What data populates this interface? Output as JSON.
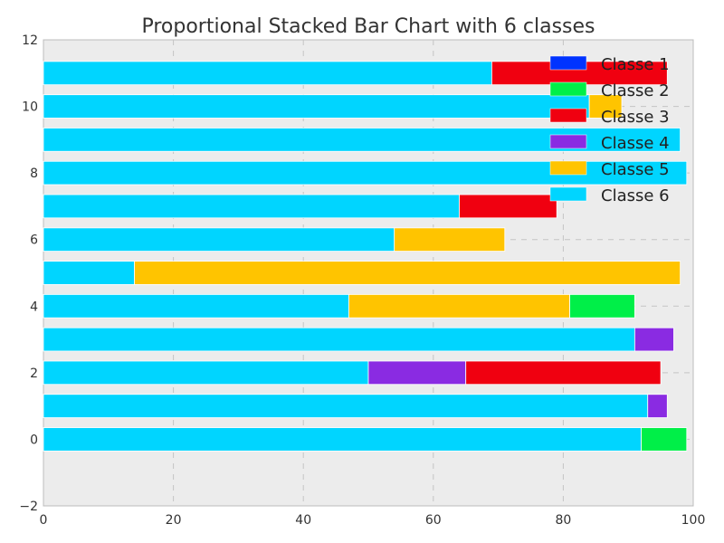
{
  "chart_data": {
    "type": "bar",
    "orientation": "horizontal",
    "stacked": true,
    "title": "Proportional Stacked Bar Chart with 6 classes",
    "xlim": [
      0,
      100
    ],
    "ylim": [
      -2,
      12
    ],
    "xticks": [
      0,
      20,
      40,
      60,
      80,
      100
    ],
    "yticks": [
      -2,
      0,
      2,
      4,
      6,
      8,
      10,
      12
    ],
    "grid": true,
    "legend_position": "top-right",
    "categories": [
      0,
      1,
      2,
      3,
      4,
      5,
      6,
      7,
      8,
      9,
      10,
      11
    ],
    "series": [
      {
        "name": "Classe 6",
        "color": "#00d5ff",
        "values": [
          92,
          93,
          50,
          91,
          47,
          14,
          54,
          64,
          99,
          98,
          84,
          69
        ]
      },
      {
        "name": "Classe 5",
        "color": "#ffc400",
        "values": [
          0,
          0,
          0,
          0,
          34,
          84,
          17,
          0,
          0,
          0,
          5,
          0
        ]
      },
      {
        "name": "Classe 4",
        "color": "#8a2be2",
        "values": [
          0,
          3,
          15,
          6,
          0,
          0,
          0,
          0,
          0,
          0,
          0,
          0
        ]
      },
      {
        "name": "Classe 3",
        "color": "#f00010",
        "values": [
          0,
          0,
          30,
          0,
          0,
          0,
          0,
          15,
          0,
          0,
          0,
          27
        ]
      },
      {
        "name": "Classe 2",
        "color": "#00ef48",
        "values": [
          7,
          0,
          0,
          0,
          10,
          0,
          0,
          0,
          0,
          0,
          0,
          0
        ]
      },
      {
        "name": "Classe 1",
        "color": "#0033ff",
        "values": [
          0,
          0,
          0,
          0,
          0,
          0,
          0,
          0,
          0,
          0,
          0,
          0
        ]
      }
    ],
    "legend_order": [
      "Classe 1",
      "Classe 2",
      "Classe 3",
      "Classe 4",
      "Classe 5",
      "Classe 6"
    ]
  }
}
